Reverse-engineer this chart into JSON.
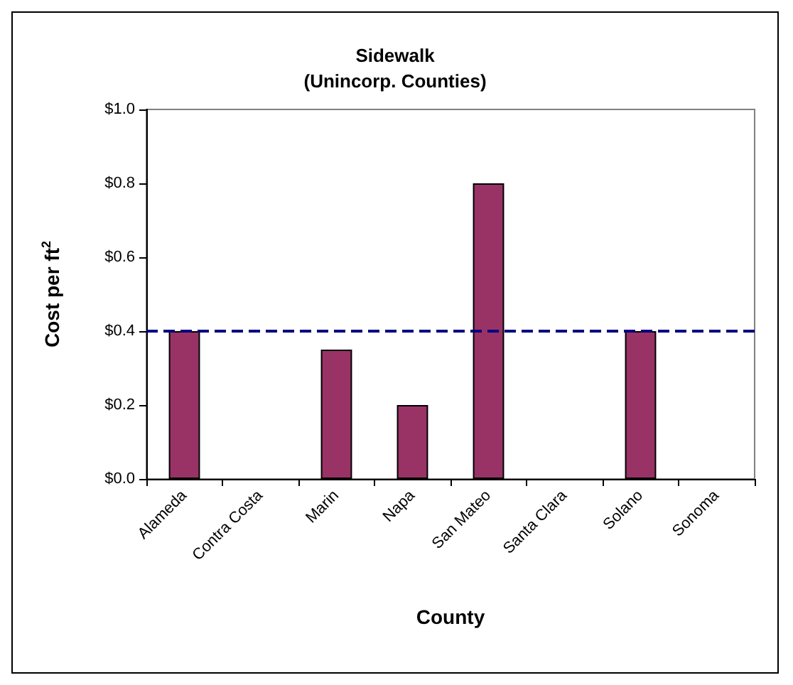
{
  "chart_data": {
    "type": "bar",
    "title": "Sidewalk\n(Unincorp. Counties)",
    "xlabel": "County",
    "ylabel": "Cost per ft$^{2}$",
    "categories": [
      "Alameda",
      "Contra Costa",
      "Marin",
      "Napa",
      "San Mateo",
      "Santa Clara",
      "Solano",
      "Sonoma"
    ],
    "values": [
      0.4,
      null,
      0.35,
      0.2,
      0.8,
      null,
      0.4,
      null
    ],
    "color": "#993366",
    "ylim": [
      0,
      1
    ],
    "yticks": [
      {
        "value": 0,
        "label": "$0.0"
      },
      {
        "value": 0.2,
        "label": "$0.2"
      },
      {
        "value": 0.4,
        "label": "$0.4"
      },
      {
        "value": 0.6,
        "label": "$0.6"
      },
      {
        "value": 0.8,
        "label": "$0.8"
      },
      {
        "value": 1,
        "label": "$1.0"
      }
    ],
    "ref_lines": [
      {
        "axis": "y",
        "value": 0.4,
        "color": "#000080",
        "line_style": "dashed"
      }
    ],
    "grid": false
  }
}
